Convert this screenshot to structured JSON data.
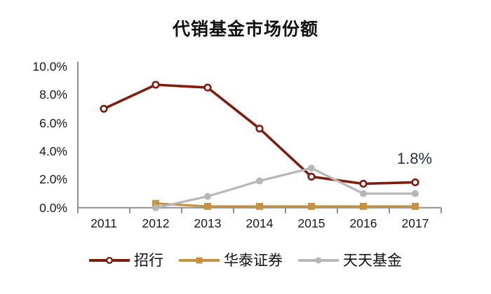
{
  "chart_data": {
    "type": "line",
    "title": "代销基金市场份额",
    "categories": [
      "2011",
      "2012",
      "2013",
      "2014",
      "2015",
      "2016",
      "2017"
    ],
    "series": [
      {
        "name": "招行",
        "color": "#7E1C0E",
        "marker": "circle-open",
        "values": [
          7.0,
          8.7,
          8.5,
          5.6,
          2.2,
          1.7,
          1.8
        ]
      },
      {
        "name": "华泰证券",
        "color": "#C8913E",
        "marker": "square",
        "values": [
          null,
          0.3,
          0.1,
          0.1,
          0.1,
          0.1,
          0.1
        ]
      },
      {
        "name": "天天基金",
        "color": "#B7B7B7",
        "marker": "circle",
        "values": [
          null,
          0.0,
          0.8,
          1.9,
          2.8,
          1.0,
          1.0
        ]
      }
    ],
    "ylim": [
      0,
      10
    ],
    "y_tick_labels": [
      "10.0%",
      "8.0%",
      "6.0%",
      "4.0%",
      "2.0%",
      "0.0%"
    ],
    "xlabel": "",
    "ylabel": "",
    "grid": false,
    "legend_position": "bottom",
    "axis_color": "#8F8F8F",
    "annotation": {
      "text": "1.8%",
      "series": "招行",
      "category": "2017",
      "color": "#243247"
    }
  }
}
